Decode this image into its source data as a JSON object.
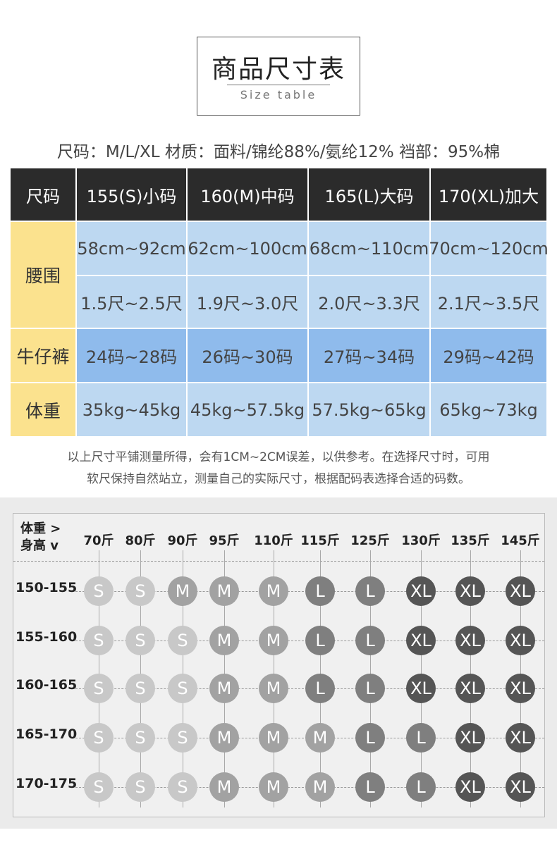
{
  "title": {
    "zh": "商品尺寸表",
    "en": "Size table"
  },
  "spec_line": "尺码：M/L/XL  材质：面料/锦纶88%/氨纶12%  裆部：95%棉",
  "size_table": {
    "header": [
      "尺码",
      "155(S)小码",
      "160(M)中码",
      "165(L)大码",
      "170(XL)加大"
    ],
    "waist_label": "腰围",
    "waist_cm": [
      "58cm~92cm",
      "62cm~100cm",
      "68cm~110cm",
      "70cm~120cm"
    ],
    "waist_chi": [
      "1.5尺~2.5尺",
      "1.9尺~3.0尺",
      "2.0尺~3.3尺",
      "2.1尺~3.5尺"
    ],
    "jeans_label": "牛仔裤",
    "jeans": [
      "24码~28码",
      "26码~30码",
      "27码~34码",
      "29码~42码"
    ],
    "weight_label": "体重",
    "weight": [
      "35kg~45kg",
      "45kg~57.5kg",
      "57.5kg~65kg",
      "65kg~73kg"
    ]
  },
  "note_lines": [
    "以上尺寸平铺测量所得，会有1CM~2CM误差，以供参考。在选择尺寸时，可用",
    "软尺保持自然站立，测量自己的实际尺寸，根据配码表选择合适的码数。"
  ],
  "chart": {
    "corner_line1": "体重 >",
    "corner_line2": "身高 v",
    "weights": [
      "70斤",
      "80斤",
      "90斤",
      "95斤",
      "110斤",
      "115斤",
      "125斤",
      "130斤",
      "135斤",
      "145斤"
    ],
    "heights": [
      "150-155",
      "155-160",
      "160-165",
      "165-170",
      "170-175"
    ],
    "grid": [
      [
        "S",
        "S",
        "M",
        "M",
        "M",
        "L",
        "L",
        "XL",
        "XL",
        "XL"
      ],
      [
        "S",
        "S",
        "S",
        "M",
        "M",
        "L",
        "L",
        "XL",
        "XL",
        "XL"
      ],
      [
        "S",
        "S",
        "S",
        "M",
        "M",
        "L",
        "L",
        "XL",
        "XL",
        "XL"
      ],
      [
        "S",
        "S",
        "S",
        "M",
        "M",
        "M",
        "L",
        "L",
        "XL",
        "XL"
      ],
      [
        "S",
        "S",
        "S",
        "M",
        "M",
        "M",
        "L",
        "L",
        "XL",
        "XL"
      ]
    ],
    "colors": {
      "S": "#c8c8c8",
      "M": "#a2a2a2",
      "L": "#7f7f7f",
      "XL": "#555555"
    }
  }
}
